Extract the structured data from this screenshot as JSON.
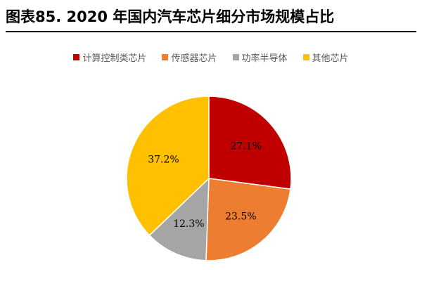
{
  "title": "图表85. 2020 年国内汽车芯片细分市场规模占比",
  "chart_data": {
    "type": "pie",
    "title": "图表85. 2020 年国内汽车芯片细分市场规模占比",
    "legend_position": "top",
    "slices": [
      {
        "name": "计算控制类芯片",
        "value": 27.1,
        "label": "27.1%",
        "color": "#C00000"
      },
      {
        "name": "传感器芯片",
        "value": 23.5,
        "label": "23.5%",
        "color": "#ED7D31"
      },
      {
        "name": "功率半导体",
        "value": 12.3,
        "label": "12.3%",
        "color": "#A5A5A5"
      },
      {
        "name": "其他芯片",
        "value": 37.2,
        "label": "37.2%",
        "color": "#FFC000"
      }
    ]
  }
}
